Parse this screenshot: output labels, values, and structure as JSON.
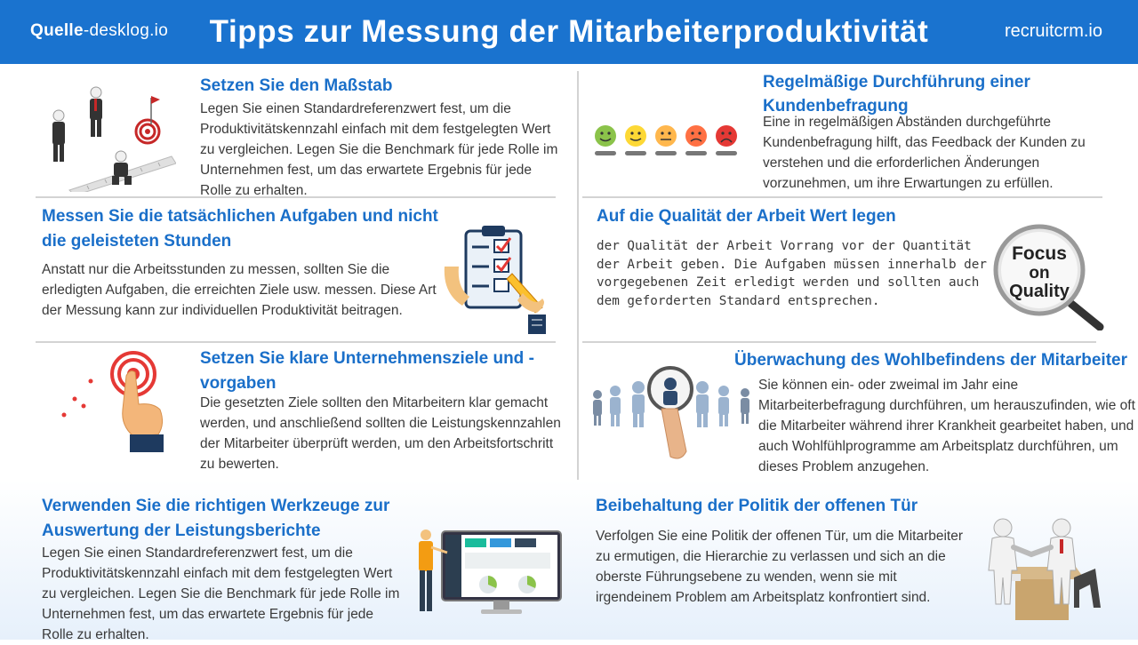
{
  "header": {
    "source_bold": "Quelle",
    "source_rest": "-desklog.io",
    "title": "Tipps zur Messung der Mitarbeiterproduktivität",
    "site": "recruitcrm.io"
  },
  "sections": [
    {
      "heading": "Setzen Sie den Maßstab",
      "text": "Legen Sie einen Standardreferenzwert fest, um die Produktivitätskennzahl einfach mit dem festgelegten Wert zu vergleichen. Legen Sie die Benchmark für jede Rolle im Unternehmen fest, um das erwartete Ergebnis für jede Rolle zu erhalten.",
      "icon": "businessmen-target-icon"
    },
    {
      "heading": "Regelmäßige Durchführung einer Kundenbefragung",
      "text": "Eine in regelmäßigen Abständen durchgeführte Kundenbefragung hilft, das Feedback der Kunden zu verstehen und die erforderlichen Änderungen vorzunehmen, um ihre Erwartungen zu erfüllen.",
      "icon": "smiley-rating-icon"
    },
    {
      "heading": "Messen Sie die tatsächlichen Aufgaben und nicht die geleisteten Stunden",
      "text": "Anstatt nur die Arbeitsstunden zu messen, sollten Sie die erledigten Aufgaben, die erreichten Ziele usw. messen. Diese Art der Messung kann zur individuellen Produktivität beitragen.",
      "icon": "checklist-clipboard-icon"
    },
    {
      "heading": "Auf die Qualität der Arbeit Wert legen",
      "text": "der Qualität der Arbeit Vorrang vor der Quantität der Arbeit geben. Die Aufgaben müssen innerhalb der vorgegebenen Zeit erledigt werden und sollten auch dem geforderten Standard entsprechen.",
      "icon": "focus-on-quality-magnifier-icon",
      "lens_line1": "Focus",
      "lens_line2": "on",
      "lens_line3": "Quality"
    },
    {
      "heading": "Setzen Sie klare Unternehmensziele und -vorgaben",
      "text": "Die gesetzten Ziele sollten den Mitarbeitern klar gemacht werden, und anschließend sollten die Leistungskennzahlen der Mitarbeiter überprüft werden, um den Arbeitsfortschritt zu bewerten.",
      "icon": "hand-target-icon"
    },
    {
      "heading": "Überwachung des Wohlbefindens der Mitarbeiter",
      "text": "Sie können ein- oder zweimal im Jahr eine Mitarbeiterbefragung durchführen, um herauszufinden, wie oft die Mitarbeiter während ihrer Krankheit gearbeitet haben, und auch Wohlfühlprogramme am Arbeitsplatz durchführen, um dieses Problem anzugehen.",
      "icon": "people-magnifier-icon"
    },
    {
      "heading": "Verwenden Sie die richtigen Werkzeuge zur Auswertung der Leistungsberichte",
      "text": "Legen Sie einen Standardreferenzwert fest, um die Produktivitätskennzahl einfach mit dem festgelegten Wert zu vergleichen. Legen Sie die Benchmark für jede Rolle im Unternehmen fest, um das erwartete Ergebnis für jede Rolle zu erhalten.",
      "icon": "dashboard-monitor-icon"
    },
    {
      "heading": "Beibehaltung der Politik der offenen Tür",
      "text": "Verfolgen Sie eine Politik der offenen Tür, um die Mitarbeiter zu ermutigen, die Hierarchie zu verlassen und sich an die oberste Führungsebene zu wenden, wenn sie mit irgendeinem Problem am Arbeitsplatz konfrontiert sind.",
      "icon": "handshake-desk-icon"
    }
  ],
  "colors": {
    "header_bg": "#1a73cf",
    "heading": "#1a6fc9",
    "body_text": "#3a3a3a",
    "divider": "#d3d3d3"
  }
}
